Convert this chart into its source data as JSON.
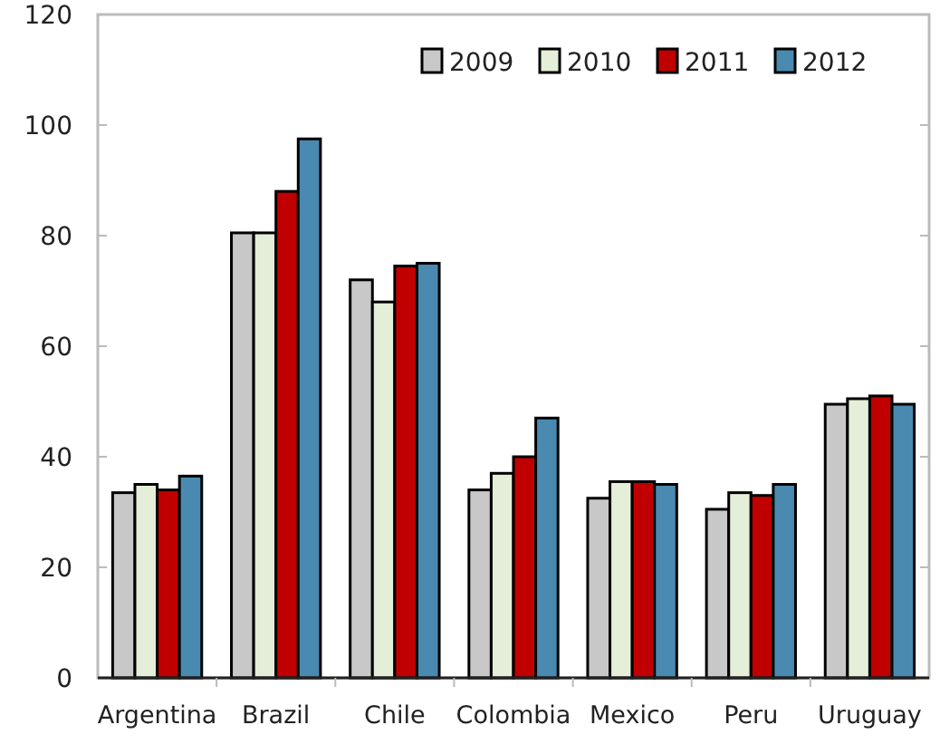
{
  "chart_data": {
    "type": "bar",
    "categories": [
      "Argentina",
      "Brazil",
      "Chile",
      "Colombia",
      "Mexico",
      "Peru",
      "Uruguay"
    ],
    "series": [
      {
        "name": "2009",
        "color": "#c8c8c8",
        "values": [
          33.5,
          80.5,
          72,
          34,
          32.5,
          30.5,
          49.5
        ]
      },
      {
        "name": "2010",
        "color": "#e4eed8",
        "values": [
          35,
          80.5,
          68,
          37,
          35.5,
          33.5,
          50.5
        ]
      },
      {
        "name": "2011",
        "color": "#c00000",
        "values": [
          34,
          88,
          74.5,
          40,
          35.5,
          33,
          51
        ]
      },
      {
        "name": "2012",
        "color": "#4a8ab0",
        "values": [
          36.5,
          97.5,
          75,
          47,
          35,
          35,
          49.5
        ]
      }
    ],
    "ylim": [
      0,
      120
    ],
    "yticks": [
      0,
      20,
      40,
      60,
      80,
      100,
      120
    ],
    "legend": "top right"
  }
}
